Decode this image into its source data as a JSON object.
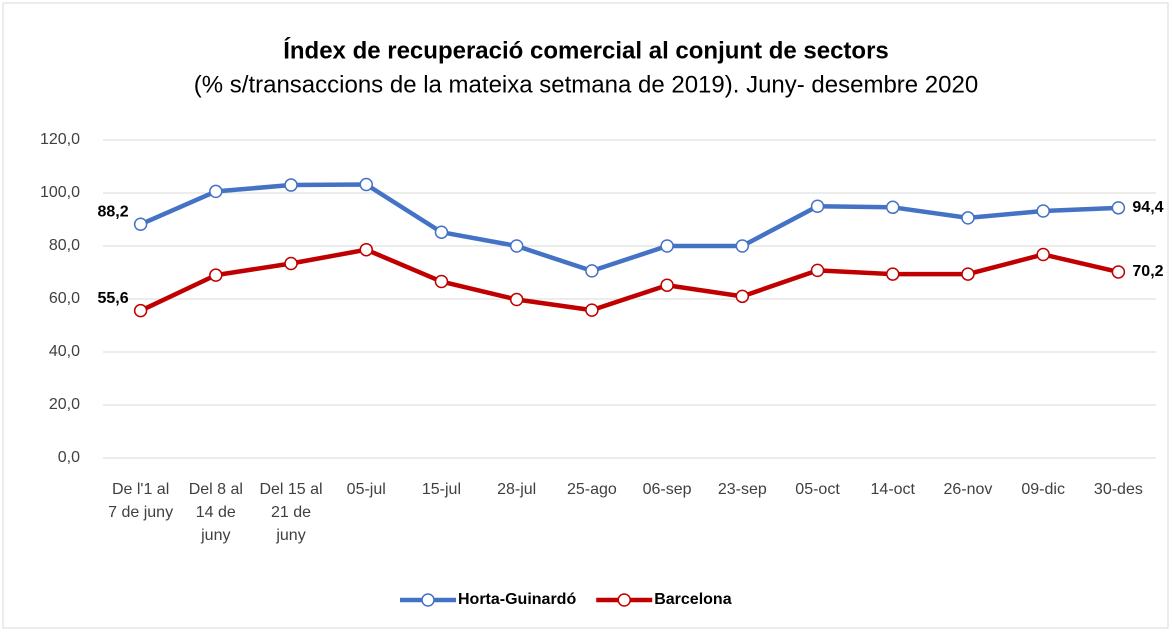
{
  "chart_data": {
    "type": "line",
    "title": "Índex de recuperació comercial al conjunt de sectors",
    "subtitle": "(% s/transaccions de la mateixa setmana de 2019). Juny- desembre 2020",
    "categories": [
      "De l'1 al 7 de juny",
      "Del 8 al 14 de juny",
      "Del 15 al 21 de juny",
      "05-jul",
      "15-jul",
      "28-jul",
      "25-ago",
      "06-sep",
      "23-sep",
      "05-oct",
      "14-oct",
      "26-nov",
      "09-dic",
      "30-des"
    ],
    "series": [
      {
        "name": "Horta-Guinardó",
        "color": "#4472c4",
        "values": [
          88.2,
          100.6,
          103,
          103.2,
          85.2,
          80,
          70.6,
          80,
          80,
          95,
          94.6,
          90.6,
          93.2,
          94.4
        ],
        "value_labels": [
          "88,2",
          null,
          null,
          null,
          null,
          null,
          null,
          null,
          null,
          null,
          null,
          null,
          null,
          "94,4"
        ]
      },
      {
        "name": "Barcelona",
        "color": "#c00000",
        "values": [
          55.6,
          69,
          73.4,
          78.6,
          66.6,
          59.8,
          55.8,
          65.2,
          61,
          70.8,
          69.4,
          69.4,
          76.8,
          70.2
        ],
        "value_labels": [
          "55,6",
          null,
          null,
          null,
          null,
          null,
          null,
          null,
          null,
          null,
          null,
          null,
          null,
          "70,2"
        ]
      }
    ],
    "ylim": [
      0,
      120
    ],
    "yticks": [
      {
        "value": 0,
        "label": "0,0"
      },
      {
        "value": 20,
        "label": "20,0"
      },
      {
        "value": 40,
        "label": "40,0"
      },
      {
        "value": 60,
        "label": "60,0"
      },
      {
        "value": 80,
        "label": "80,0"
      },
      {
        "value": 100,
        "label": "100,0"
      },
      {
        "value": 120,
        "label": "120,0"
      }
    ],
    "grid": true,
    "legend": "bottom"
  }
}
